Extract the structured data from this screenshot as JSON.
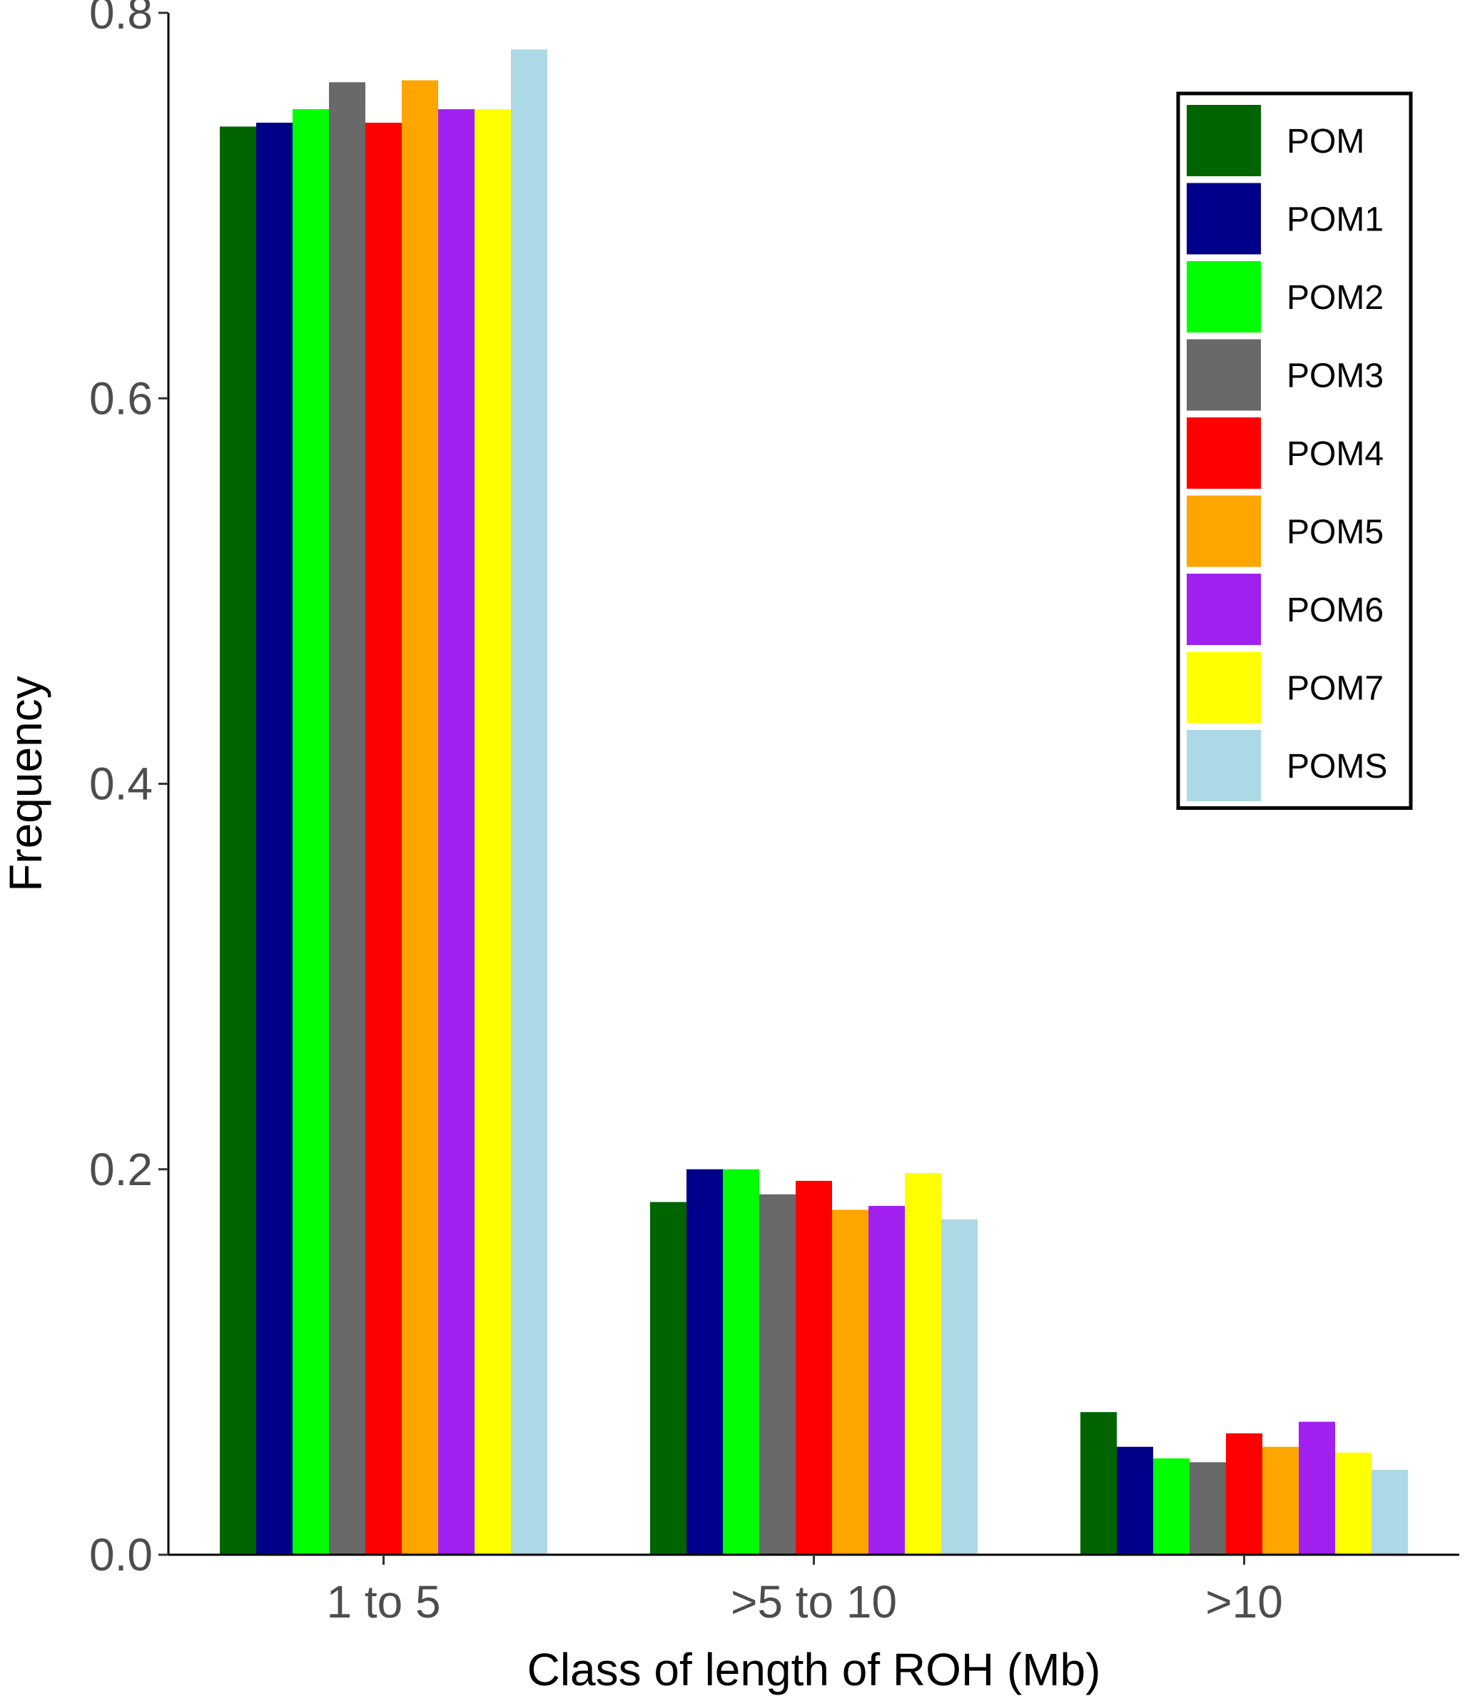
{
  "chart_data": {
    "type": "bar",
    "xlabel": "Class of length of ROH (Mb)",
    "ylabel": "Frequency",
    "categories": [
      "1 to 5",
      ">5 to 10",
      ">10"
    ],
    "ylim": [
      0.0,
      0.8
    ],
    "yticks": [
      "0.0",
      "0.2",
      "0.4",
      "0.6",
      "0.8"
    ],
    "legend_position": "top-right",
    "grid": false,
    "series": [
      {
        "name": "POM",
        "color": "#006400",
        "values": [
          0.741,
          0.183,
          0.074
        ]
      },
      {
        "name": "POM1",
        "color": "#00008B",
        "values": [
          0.743,
          0.2,
          0.056
        ]
      },
      {
        "name": "POM2",
        "color": "#00FF00",
        "values": [
          0.75,
          0.2,
          0.05
        ]
      },
      {
        "name": "POM3",
        "color": "#696969",
        "values": [
          0.764,
          0.187,
          0.048
        ]
      },
      {
        "name": "POM4",
        "color": "#FF0000",
        "values": [
          0.743,
          0.194,
          0.063
        ]
      },
      {
        "name": "POM5",
        "color": "#FFA500",
        "values": [
          0.765,
          0.179,
          0.056
        ]
      },
      {
        "name": "POM6",
        "color": "#A020F0",
        "values": [
          0.75,
          0.181,
          0.069
        ]
      },
      {
        "name": "POM7",
        "color": "#FFFF00",
        "values": [
          0.75,
          0.198,
          0.053
        ]
      },
      {
        "name": "POMS",
        "color": "#ADD8E6",
        "values": [
          0.781,
          0.174,
          0.044
        ]
      }
    ]
  }
}
